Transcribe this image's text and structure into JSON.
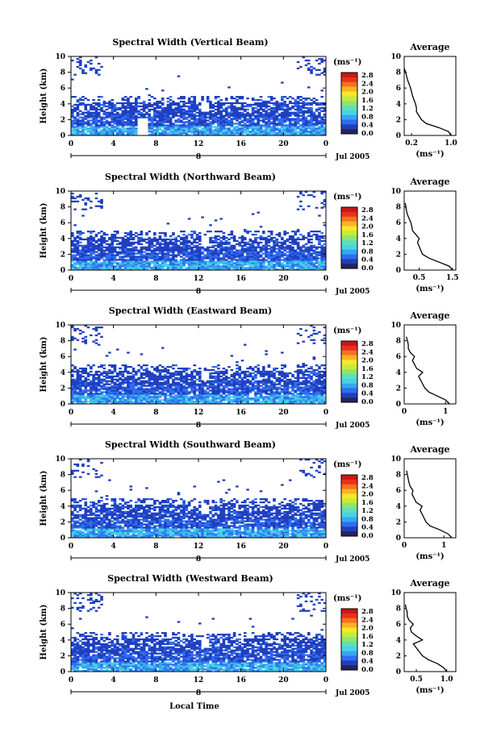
{
  "figure": {
    "x_axis_label": "Local Time",
    "date_label": "Jul 2005",
    "date_day": "8"
  },
  "colorbar": {
    "unit": "(ms⁻¹)",
    "ticks": [
      "2.8",
      "2.4",
      "2.0",
      "1.6",
      "1.2",
      "0.8",
      "0.4",
      "0.0"
    ],
    "colors": [
      "#27235c",
      "#1f3fbf",
      "#2f6df0",
      "#35a6ef",
      "#49d2e6",
      "#5fe0b5",
      "#8ee56e",
      "#c8ea3a",
      "#f7e72a",
      "#f9b324",
      "#f7711f",
      "#e8321c",
      "#c81818"
    ]
  },
  "chart_data": [
    {
      "type": "heatmap",
      "title": "Spectral Width (Vertical Beam)",
      "ylabel": "Height (km)",
      "xlabel": "Local Time",
      "x_ticks": [
        "0",
        "4",
        "8",
        "12",
        "16",
        "20",
        "0"
      ],
      "y_ticks": [
        "0",
        "2",
        "4",
        "6",
        "8",
        "10"
      ],
      "ylim": [
        0,
        10
      ],
      "xlim": [
        0,
        24
      ],
      "profile": {
        "title": "Average",
        "xlabel": "(ms⁻¹)",
        "x_ticks": [
          "0.2",
          "1.0"
        ],
        "x_tick_values": [
          0.2,
          1.0
        ],
        "xlim": [
          0.05,
          1.1
        ],
        "y_ticks": [
          "0",
          "2",
          "4",
          "6",
          "8",
          "10"
        ],
        "ylim": [
          0,
          10
        ],
        "heights": [
          0,
          0.5,
          1.0,
          1.5,
          2.0,
          2.5,
          3.0,
          3.5,
          4.0,
          4.5,
          5.0,
          5.5,
          6.0,
          6.5,
          7.0,
          7.5,
          8.0,
          8.5
        ],
        "values": [
          1.0,
          0.95,
          0.75,
          0.5,
          0.4,
          0.35,
          0.3,
          0.3,
          0.28,
          0.25,
          0.22,
          0.2,
          0.18,
          0.15,
          0.12,
          0.1,
          0.08,
          0.05
        ]
      }
    },
    {
      "type": "heatmap",
      "title": "Spectral Width (Northward Beam)",
      "ylabel": "Height (km)",
      "xlabel": "Local Time",
      "x_ticks": [
        "0",
        "4",
        "8",
        "12",
        "16",
        "20",
        "0"
      ],
      "y_ticks": [
        "0",
        "2",
        "4",
        "6",
        "8",
        "10"
      ],
      "ylim": [
        0,
        10
      ],
      "xlim": [
        0,
        24
      ],
      "profile": {
        "title": "Average",
        "xlabel": "(ms⁻¹)",
        "x_ticks": [
          "0.5",
          "1.5"
        ],
        "x_tick_values": [
          0.5,
          1.5
        ],
        "xlim": [
          0.05,
          1.6
        ],
        "y_ticks": [
          "0",
          "2",
          "4",
          "6",
          "8",
          "10"
        ],
        "ylim": [
          0,
          10
        ],
        "heights": [
          0,
          0.5,
          1.0,
          1.5,
          2.0,
          2.5,
          3.0,
          3.5,
          4.0,
          4.5,
          5.0,
          5.5,
          6.0,
          6.5,
          7.0,
          7.5,
          8.0,
          8.5
        ],
        "values": [
          1.5,
          1.4,
          1.1,
          0.8,
          0.6,
          0.55,
          0.5,
          0.45,
          0.5,
          0.4,
          0.3,
          0.28,
          0.25,
          0.2,
          0.15,
          0.12,
          0.1,
          0.08
        ]
      }
    },
    {
      "type": "heatmap",
      "title": "Spectral Width (Eastward Beam)",
      "ylabel": "Height (km)",
      "xlabel": "Local Time",
      "x_ticks": [
        "0",
        "4",
        "8",
        "12",
        "16",
        "20",
        "0"
      ],
      "y_ticks": [
        "0",
        "2",
        "4",
        "6",
        "8",
        "10"
      ],
      "ylim": [
        0,
        10
      ],
      "xlim": [
        0,
        24
      ],
      "profile": {
        "title": "Average",
        "xlabel": "(ms⁻¹)",
        "x_ticks": [
          "0",
          "1"
        ],
        "x_tick_values": [
          0,
          1
        ],
        "xlim": [
          0,
          1.25
        ],
        "y_ticks": [
          "0",
          "2",
          "4",
          "6",
          "8",
          "10"
        ],
        "ylim": [
          0,
          10
        ],
        "heights": [
          0,
          0.5,
          1.0,
          1.5,
          2.0,
          2.5,
          3.0,
          3.5,
          4.0,
          4.5,
          5.0,
          5.5,
          6.0,
          6.5,
          7.0,
          7.5,
          8.0,
          8.5
        ],
        "values": [
          1.1,
          1.0,
          0.8,
          0.6,
          0.5,
          0.45,
          0.4,
          0.35,
          0.45,
          0.3,
          0.25,
          0.2,
          0.25,
          0.15,
          0.1,
          0.1,
          0.08,
          0.05
        ]
      }
    },
    {
      "type": "heatmap",
      "title": "Spectral Width (Southward Beam)",
      "ylabel": "Height (km)",
      "xlabel": "Local Time",
      "x_ticks": [
        "0",
        "4",
        "8",
        "12",
        "16",
        "20",
        "0"
      ],
      "y_ticks": [
        "0",
        "2",
        "4",
        "6",
        "8",
        "10"
      ],
      "ylim": [
        0,
        10
      ],
      "xlim": [
        0,
        24
      ],
      "profile": {
        "title": "Average",
        "xlabel": "(ms⁻¹)",
        "x_ticks": [
          "0",
          "1"
        ],
        "x_tick_values": [
          0,
          1
        ],
        "xlim": [
          0,
          1.3
        ],
        "y_ticks": [
          "0",
          "2",
          "4",
          "6",
          "8",
          "10"
        ],
        "ylim": [
          0,
          10
        ],
        "heights": [
          0,
          0.5,
          1.0,
          1.5,
          2.0,
          2.5,
          3.0,
          3.5,
          4.0,
          4.5,
          5.0,
          5.5,
          6.0,
          6.5,
          7.0,
          7.5,
          8.0,
          8.5
        ],
        "values": [
          1.2,
          1.1,
          0.9,
          0.65,
          0.55,
          0.5,
          0.45,
          0.4,
          0.45,
          0.3,
          0.25,
          0.2,
          0.22,
          0.15,
          0.12,
          0.1,
          0.08,
          0.06
        ]
      }
    },
    {
      "type": "heatmap",
      "title": "Spectral Width (Westward Beam)",
      "ylabel": "Height (km)",
      "xlabel": "Local Time",
      "x_ticks": [
        "0",
        "4",
        "8",
        "12",
        "16",
        "20",
        "0"
      ],
      "y_ticks": [
        "0",
        "2",
        "4",
        "6",
        "8",
        "10"
      ],
      "ylim": [
        0,
        10
      ],
      "xlim": [
        0,
        24
      ],
      "profile": {
        "title": "Average",
        "xlabel": "(ms⁻¹)",
        "x_ticks": [
          "0.5",
          "1.0"
        ],
        "x_tick_values": [
          0.5,
          1.0
        ],
        "xlim": [
          0.3,
          1.15
        ],
        "y_ticks": [
          "0",
          "2",
          "4",
          "6",
          "8",
          "10"
        ],
        "ylim": [
          0,
          10
        ],
        "heights": [
          0,
          0.5,
          1.0,
          1.5,
          2.0,
          2.5,
          3.0,
          3.5,
          4.0,
          4.5,
          5.0,
          5.5,
          6.0,
          6.5,
          7.0,
          7.5,
          8.0,
          8.5
        ],
        "values": [
          1.0,
          0.95,
          0.85,
          0.7,
          0.6,
          0.55,
          0.5,
          0.45,
          0.6,
          0.5,
          0.42,
          0.4,
          0.45,
          0.38,
          0.35,
          0.35,
          0.33,
          0.32
        ]
      }
    }
  ]
}
